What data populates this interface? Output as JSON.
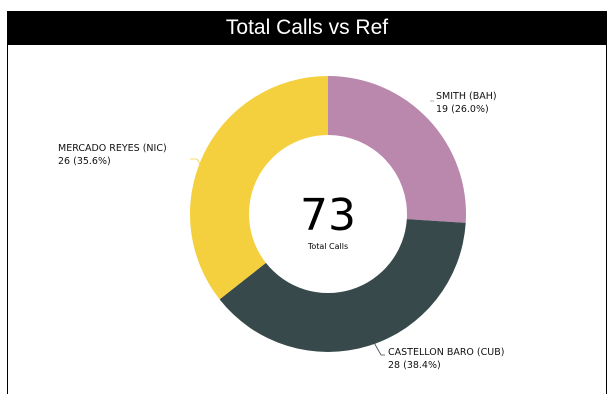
{
  "title": "Total Calls vs Ref",
  "center": {
    "total": "73",
    "caption": "Total Calls"
  },
  "labels": {
    "smith_name": "SMITH (BAH)",
    "smith_value": "19 (26.0%)",
    "castellon_name": "CASTELLON BARO (CUB)",
    "castellon_value": "28 (38.4%)",
    "mercado_name": "MERCADO REYES (NIC)",
    "mercado_value": "26 (35.6%)"
  },
  "chart_data": {
    "type": "pie",
    "title": "Total Calls vs Ref",
    "donut": true,
    "center_value": 73,
    "center_label": "Total Calls",
    "categories": [
      "SMITH (BAH)",
      "CASTELLON BARO (CUB)",
      "MERCADO REYES (NIC)"
    ],
    "values": [
      19,
      28,
      26
    ],
    "percentages": [
      26.0,
      38.4,
      35.6
    ],
    "colors": [
      "#b988ac",
      "#37494a",
      "#f4d03f"
    ],
    "start_angle": "top",
    "direction": "clockwise"
  }
}
